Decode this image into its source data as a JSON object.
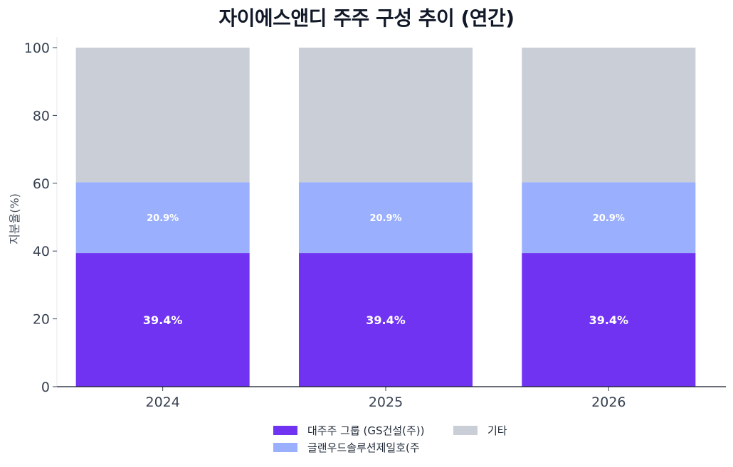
{
  "chart_data": {
    "type": "bar",
    "stacked": true,
    "title": "자이에스앤디 주주 구성 추이 (연간)",
    "ylabel": "지분율(%)",
    "xlabel": "",
    "categories": [
      "2024",
      "2025",
      "2026"
    ],
    "ylim": [
      0,
      100
    ],
    "yticks": [
      0,
      20,
      40,
      60,
      80,
      100
    ],
    "series": [
      {
        "name": "대주주 그룹 (GS건설(주))",
        "values": [
          39.4,
          39.4,
          39.4
        ],
        "labels": [
          "39.4%",
          "39.4%",
          "39.4%"
        ],
        "color": "#7133f2"
      },
      {
        "name": "글랜우드솔루션제일호(주",
        "values": [
          20.9,
          20.9,
          20.9
        ],
        "labels": [
          "20.9%",
          "20.9%",
          "20.9%"
        ],
        "color": "#9aaffd"
      },
      {
        "name": "기타",
        "values": [
          39.7,
          39.7,
          39.7
        ],
        "labels": [
          "",
          "",
          ""
        ],
        "color": "#c9ced7"
      }
    ],
    "legend": "bottom-center",
    "grid": false
  }
}
